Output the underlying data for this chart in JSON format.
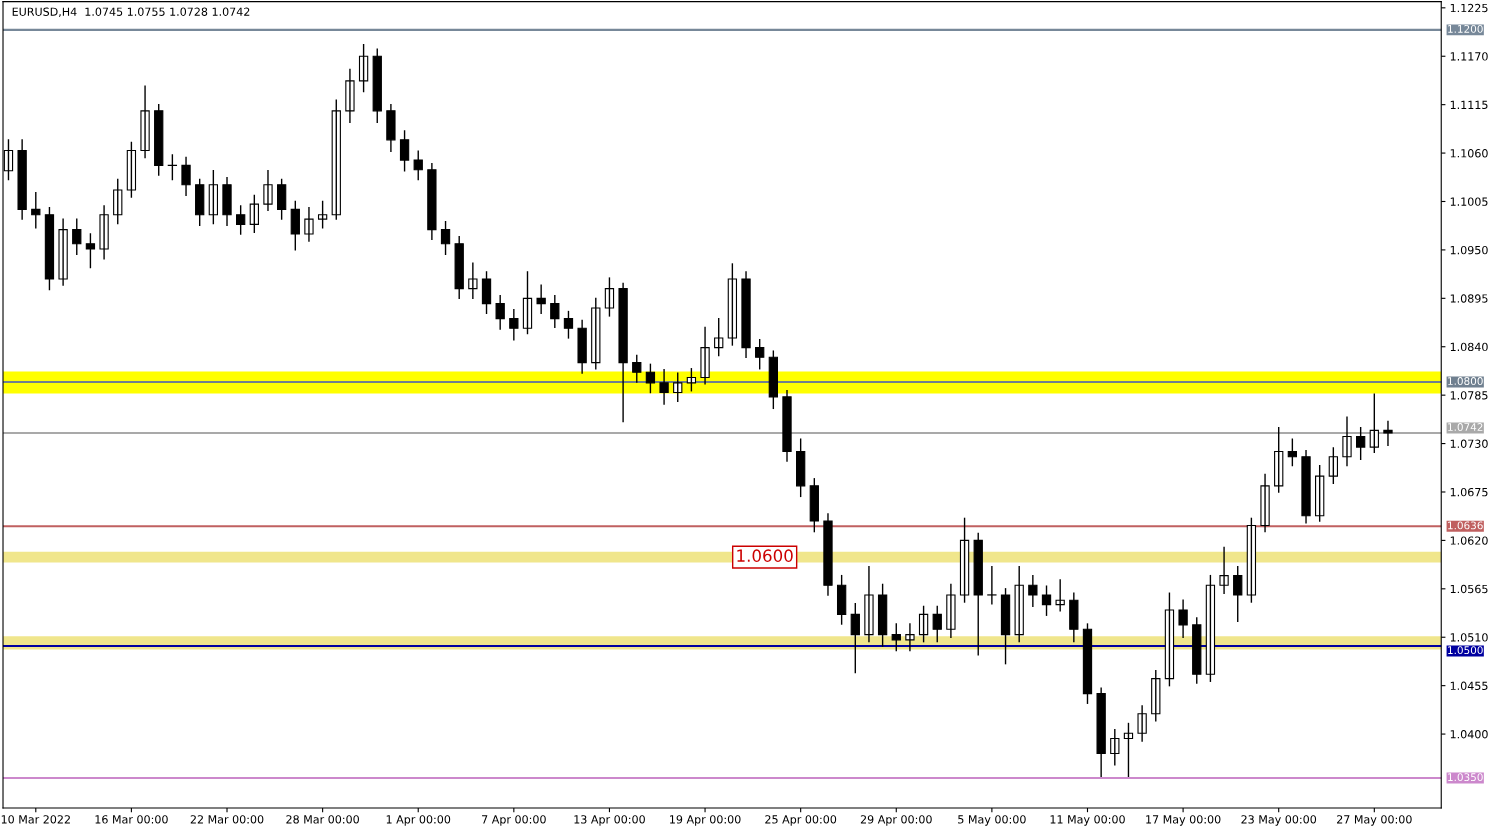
{
  "chart_data": {
    "type": "candlestick",
    "title": "EURUSD,H4  1.0745 1.0755 1.0728 1.0742",
    "color": "#000000",
    "categories": [
      null,
      null,
      "10 Mar 2022",
      null,
      null,
      null,
      null,
      null,
      null,
      "16 Mar 00:00",
      null,
      null,
      null,
      null,
      null,
      null,
      "22 Mar 00:00",
      null,
      null,
      null,
      null,
      null,
      null,
      "28 Mar 00:00",
      null,
      null,
      null,
      null,
      null,
      null,
      "1 Apr 00:00",
      null,
      null,
      null,
      null,
      null,
      null,
      "7 Apr 00:00",
      null,
      null,
      null,
      null,
      null,
      null,
      "13 Apr 00:00",
      null,
      null,
      null,
      null,
      null,
      null,
      "19 Apr 00:00",
      null,
      null,
      null,
      null,
      null,
      null,
      "25 Apr 00:00",
      null,
      null,
      null,
      null,
      null,
      null,
      "29 Apr 00:00",
      null,
      null,
      null,
      null,
      null,
      null,
      "5 May 00:00",
      null,
      null,
      null,
      null,
      null,
      null,
      "11 May 00:00",
      null,
      null,
      null,
      null,
      null,
      null,
      "17 May 00:00",
      null,
      null,
      null,
      null,
      null,
      null,
      "23 May 00:00",
      null,
      null,
      null,
      null,
      null,
      null,
      "27 May 00:00",
      null
    ],
    "ohlc": [
      [
        1.104,
        1.1075,
        1.103,
        1.1063
      ],
      [
        1.1063,
        1.1075,
        1.0985,
        1.0996
      ],
      [
        1.0996,
        1.1015,
        1.0975,
        1.099
      ],
      [
        1.099,
        1.0998,
        1.0905,
        1.0917
      ],
      [
        1.0917,
        1.0985,
        1.091,
        1.0973
      ],
      [
        1.0973,
        1.0985,
        1.0945,
        1.0957
      ],
      [
        1.0957,
        1.0968,
        1.093,
        1.0951
      ],
      [
        1.0951,
        1.1,
        1.094,
        1.099
      ],
      [
        1.099,
        1.103,
        1.098,
        1.1018
      ],
      [
        1.1018,
        1.1072,
        1.101,
        1.1063
      ],
      [
        1.1063,
        1.1136,
        1.1055,
        1.1108
      ],
      [
        1.1108,
        1.1115,
        1.1035,
        1.1046
      ],
      [
        1.1046,
        1.1058,
        1.103,
        1.1046
      ],
      [
        1.1046,
        1.1055,
        1.1012,
        1.1024
      ],
      [
        1.1024,
        1.103,
        1.0978,
        1.099
      ],
      [
        1.099,
        1.104,
        1.098,
        1.1024
      ],
      [
        1.1024,
        1.1032,
        1.0978,
        1.099
      ],
      [
        1.099,
        1.1,
        1.0968,
        1.0979
      ],
      [
        1.0979,
        1.1012,
        1.097,
        1.1002
      ],
      [
        1.1002,
        1.104,
        1.0995,
        1.1024
      ],
      [
        1.1024,
        1.103,
        1.0985,
        1.0996
      ],
      [
        1.0996,
        1.1005,
        1.095,
        1.0968
      ],
      [
        1.0968,
        1.0998,
        1.096,
        1.0985
      ],
      [
        1.0985,
        1.1005,
        1.0975,
        1.099
      ],
      [
        1.099,
        1.112,
        1.0985,
        1.1108
      ],
      [
        1.1108,
        1.1155,
        1.1095,
        1.1142
      ],
      [
        1.1142,
        1.1183,
        1.113,
        1.117
      ],
      [
        1.117,
        1.1178,
        1.1095,
        1.1108
      ],
      [
        1.1108,
        1.1115,
        1.1062,
        1.1075
      ],
      [
        1.1075,
        1.1085,
        1.104,
        1.1052
      ],
      [
        1.1052,
        1.1062,
        1.103,
        1.1041
      ],
      [
        1.1041,
        1.1048,
        1.0962,
        1.0973
      ],
      [
        1.0973,
        1.0982,
        1.0945,
        1.0957
      ],
      [
        1.0957,
        1.0965,
        1.0895,
        1.0906
      ],
      [
        1.0906,
        1.0935,
        1.0895,
        1.0917
      ],
      [
        1.0917,
        1.0925,
        1.0878,
        1.0889
      ],
      [
        1.0889,
        1.0898,
        1.086,
        1.0872
      ],
      [
        1.0872,
        1.0882,
        1.0848,
        1.0861
      ],
      [
        1.0861,
        1.0925,
        1.0855,
        1.0895
      ],
      [
        1.0895,
        1.091,
        1.0878,
        1.0889
      ],
      [
        1.0889,
        1.0898,
        1.0862,
        1.0872
      ],
      [
        1.0872,
        1.088,
        1.085,
        1.0861
      ],
      [
        1.0861,
        1.087,
        1.081,
        1.0822
      ],
      [
        1.0822,
        1.0895,
        1.0815,
        1.0884
      ],
      [
        1.0884,
        1.0918,
        1.0875,
        1.0906
      ],
      [
        1.0906,
        1.0912,
        1.0755,
        1.0822
      ],
      [
        1.0822,
        1.083,
        1.08,
        1.0811
      ],
      [
        1.0811,
        1.082,
        1.0788,
        1.0799
      ],
      [
        1.0799,
        1.0814,
        1.0775,
        1.0788
      ],
      [
        1.0788,
        1.081,
        1.0778,
        1.0799
      ],
      [
        1.0799,
        1.0815,
        1.079,
        1.0805
      ],
      [
        1.0805,
        1.0862,
        1.0798,
        1.0839
      ],
      [
        1.0839,
        1.0872,
        1.083,
        1.085
      ],
      [
        1.085,
        1.0934,
        1.0842,
        1.0917
      ],
      [
        1.0917,
        1.0925,
        1.0828,
        1.0839
      ],
      [
        1.0839,
        1.0848,
        1.0815,
        1.0828
      ],
      [
        1.0828,
        1.0835,
        1.077,
        1.0783
      ],
      [
        1.0783,
        1.079,
        1.071,
        1.0721
      ],
      [
        1.0721,
        1.0735,
        1.067,
        1.0682
      ],
      [
        1.0682,
        1.069,
        1.063,
        1.0642
      ],
      [
        1.0642,
        1.065,
        1.0558,
        1.0569
      ],
      [
        1.0569,
        1.058,
        1.0525,
        1.0536
      ],
      [
        1.0536,
        1.0548,
        1.047,
        1.0513
      ],
      [
        1.0513,
        1.059,
        1.0505,
        1.0558
      ],
      [
        1.0558,
        1.057,
        1.05,
        1.0513
      ],
      [
        1.0513,
        1.0525,
        1.0495,
        1.0507
      ],
      [
        1.0507,
        1.0525,
        1.0495,
        1.0513
      ],
      [
        1.0513,
        1.0545,
        1.0505,
        1.0536
      ],
      [
        1.0536,
        1.0545,
        1.0505,
        1.0519
      ],
      [
        1.0519,
        1.057,
        1.051,
        1.0558
      ],
      [
        1.0558,
        1.0645,
        1.055,
        1.062
      ],
      [
        1.062,
        1.0628,
        1.049,
        1.0558
      ],
      [
        1.0558,
        1.059,
        1.0548,
        1.0558
      ],
      [
        1.0558,
        1.0565,
        1.048,
        1.0513
      ],
      [
        1.0513,
        1.059,
        1.0505,
        1.0569
      ],
      [
        1.0569,
        1.058,
        1.0545,
        1.0558
      ],
      [
        1.0558,
        1.0568,
        1.0535,
        1.0547
      ],
      [
        1.0547,
        1.0575,
        1.054,
        1.0552
      ],
      [
        1.0552,
        1.056,
        1.0505,
        1.0519
      ],
      [
        1.0519,
        1.0525,
        1.0435,
        1.0446
      ],
      [
        1.0446,
        1.0452,
        1.0352,
        1.0378
      ],
      [
        1.0378,
        1.0405,
        1.0365,
        1.0395
      ],
      [
        1.0395,
        1.0412,
        1.0352,
        1.0401
      ],
      [
        1.0401,
        1.0432,
        1.0392,
        1.0423
      ],
      [
        1.0423,
        1.0472,
        1.0415,
        1.0463
      ],
      [
        1.0463,
        1.056,
        1.0455,
        1.0541
      ],
      [
        1.0541,
        1.0552,
        1.051,
        1.0524
      ],
      [
        1.0524,
        1.0532,
        1.0458,
        1.0468
      ],
      [
        1.0468,
        1.058,
        1.046,
        1.0569
      ],
      [
        1.0569,
        1.0612,
        1.056,
        1.058
      ],
      [
        1.058,
        1.059,
        1.0528,
        1.0558
      ],
      [
        1.0558,
        1.0645,
        1.055,
        1.0637
      ],
      [
        1.0637,
        1.0695,
        1.063,
        1.0682
      ],
      [
        1.0682,
        1.0748,
        1.0675,
        1.0721
      ],
      [
        1.0721,
        1.0735,
        1.0705,
        1.0715
      ],
      [
        1.0715,
        1.0722,
        1.064,
        1.0648
      ],
      [
        1.0648,
        1.0705,
        1.0642,
        1.0693
      ],
      [
        1.0693,
        1.0725,
        1.0685,
        1.0715
      ],
      [
        1.0715,
        1.076,
        1.0705,
        1.0738
      ],
      [
        1.0738,
        1.0748,
        1.0712,
        1.0726
      ],
      [
        1.0726,
        1.0786,
        1.072,
        1.0745
      ],
      [
        1.0745,
        1.0755,
        1.0728,
        1.0742
      ]
    ],
    "ylim": [
      1.0316,
      1.1232
    ],
    "yticks": [
      {
        "value": 1.1225,
        "label": "1.1225"
      },
      {
        "value": 1.117,
        "label": "1.1170"
      },
      {
        "value": 1.1115,
        "label": "1.1115"
      },
      {
        "value": 1.106,
        "label": "1.1060"
      },
      {
        "value": 1.1005,
        "label": "1.1005"
      },
      {
        "value": 1.095,
        "label": "1.0950"
      },
      {
        "value": 1.0895,
        "label": "1.0895"
      },
      {
        "value": 1.084,
        "label": "1.0840"
      },
      {
        "value": 1.0785,
        "label": "1.0785"
      },
      {
        "value": 1.073,
        "label": "1.0730"
      },
      {
        "value": 1.0675,
        "label": "1.0675"
      },
      {
        "value": 1.062,
        "label": "1.0620"
      },
      {
        "value": 1.0565,
        "label": "1.0565"
      },
      {
        "value": 1.051,
        "label": "1.0510"
      },
      {
        "value": 1.0455,
        "label": "1.0455"
      },
      {
        "value": 1.04,
        "label": "1.0400"
      }
    ],
    "bands": [
      {
        "axis": "y",
        "from": 1.0787,
        "to": 1.0812,
        "color": "#ffff00"
      },
      {
        "axis": "y",
        "from": 1.0595,
        "to": 1.0607,
        "label": "1.0600",
        "color": "#f0e68c"
      },
      {
        "axis": "y",
        "from": 1.0496,
        "to": 1.0511,
        "color": "#f0e68c"
      }
    ],
    "ref_lines": [
      {
        "axis": "y",
        "value": 1.12,
        "label": "1.1200",
        "color": "#778899"
      },
      {
        "axis": "y",
        "value": 1.08,
        "label": "1.0800",
        "color": "#708090"
      },
      {
        "axis": "y",
        "value": 1.0742,
        "label": "1.0742",
        "color": "#a9a9a9"
      },
      {
        "axis": "y",
        "value": 1.0636,
        "label": "1.0636",
        "color": "#c06060"
      },
      {
        "axis": "y",
        "value": 1.05,
        "label": "1.0500",
        "color": "#0000a0"
      },
      {
        "axis": "y",
        "value": 1.035,
        "label": "1.0350",
        "color": "#cc88cc"
      }
    ],
    "grid": false,
    "legend": false
  }
}
